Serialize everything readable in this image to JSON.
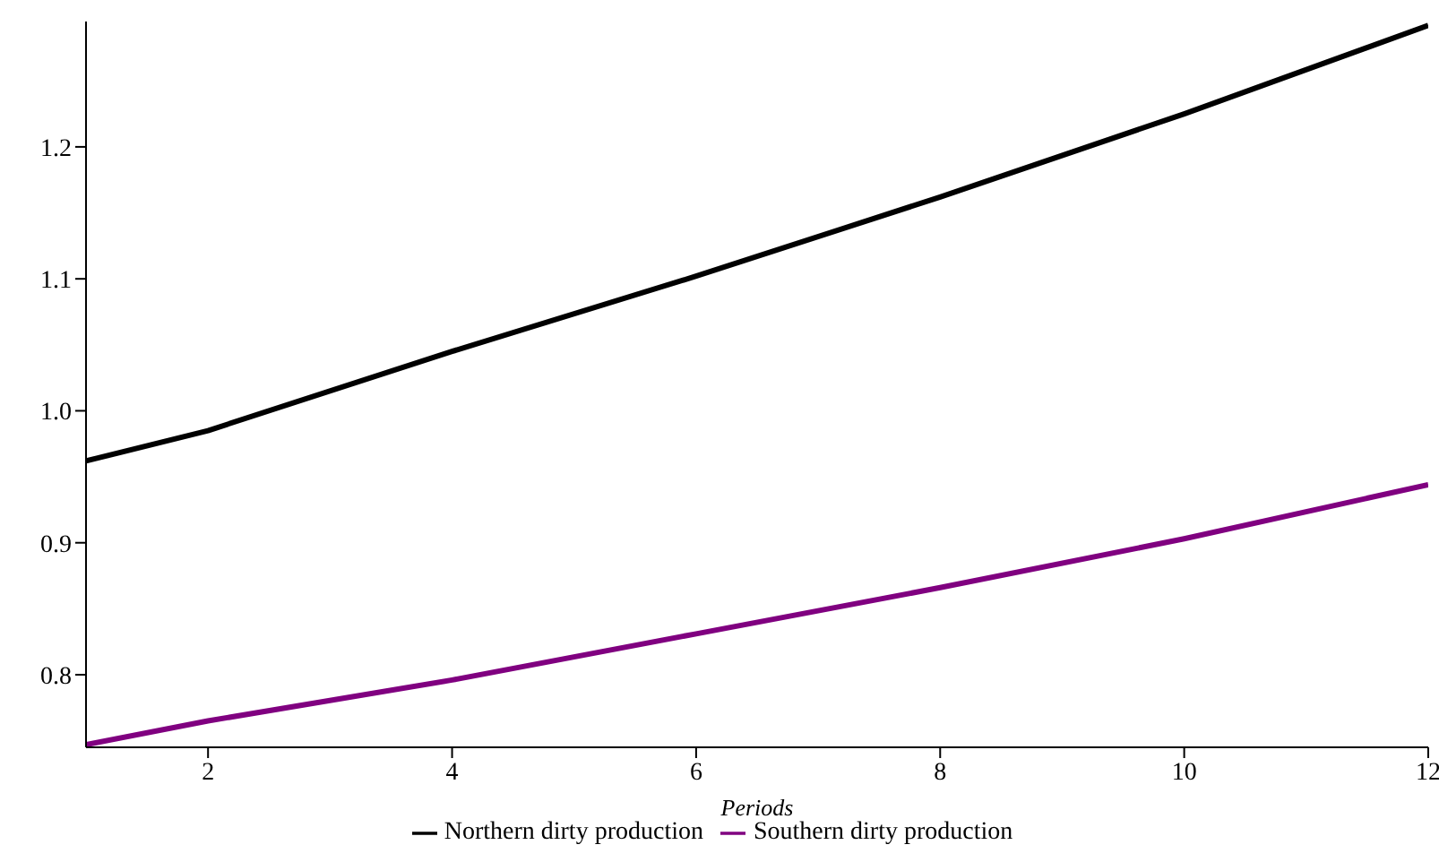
{
  "chart_data": {
    "type": "line",
    "xlabel": "Periods",
    "x": [
      1,
      2,
      4,
      6,
      8,
      10,
      12
    ],
    "series": [
      {
        "name": "Northern dirty production",
        "color": "#000000",
        "values": [
          0.962,
          0.985,
          1.045,
          1.102,
          1.162,
          1.225,
          1.292
        ]
      },
      {
        "name": "Southern dirty production",
        "color": "#800080",
        "values": [
          0.747,
          0.765,
          0.796,
          0.831,
          0.866,
          0.903,
          0.944
        ]
      }
    ],
    "xlim": [
      1,
      12
    ],
    "xticks": [
      2,
      4,
      6,
      8,
      10,
      12
    ],
    "ylim": [
      0.745,
      1.295
    ],
    "yticks": [
      0.8,
      0.9,
      {
        "value": 1,
        "label": "1.0"
      },
      1.1,
      1.2
    ],
    "grid": false,
    "legend": "bottom",
    "marker": "none",
    "line_style": "solid"
  }
}
